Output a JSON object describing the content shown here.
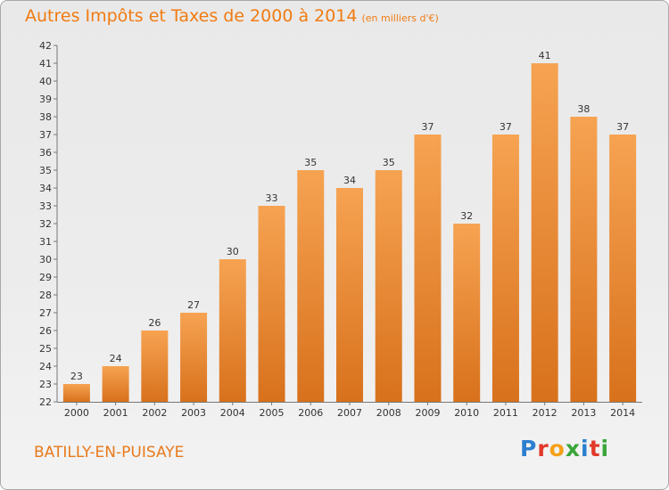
{
  "chart_data": {
    "type": "bar",
    "title": "Autres Impôts et Taxes de 2000 à 2014",
    "title_unit": "(en milliers d'€)",
    "categories": [
      "2000",
      "2001",
      "2002",
      "2003",
      "2004",
      "2005",
      "2006",
      "2007",
      "2008",
      "2009",
      "2010",
      "2011",
      "2012",
      "2013",
      "2014"
    ],
    "values": [
      23,
      24,
      26,
      27,
      30,
      33,
      35,
      34,
      35,
      37,
      32,
      37,
      41,
      38,
      37
    ],
    "ylim": [
      22,
      42
    ],
    "yticks": [
      22,
      23,
      24,
      25,
      26,
      27,
      28,
      29,
      30,
      31,
      32,
      33,
      34,
      35,
      36,
      37,
      38,
      39,
      40,
      41,
      42
    ],
    "grid": false,
    "bar_color": "#f08a2c",
    "xlabel": "",
    "ylabel": ""
  },
  "commune": "BATILLY-EN-PUISAYE",
  "brand": {
    "name": "Proxiti",
    "letters": [
      "P",
      "r",
      "o",
      "x",
      "i",
      "t",
      "i"
    ]
  },
  "colors": {
    "title": "#f07b12",
    "commune": "#e87a1c",
    "bar_light": "#f6a352",
    "bar_dark": "#d8711c"
  }
}
